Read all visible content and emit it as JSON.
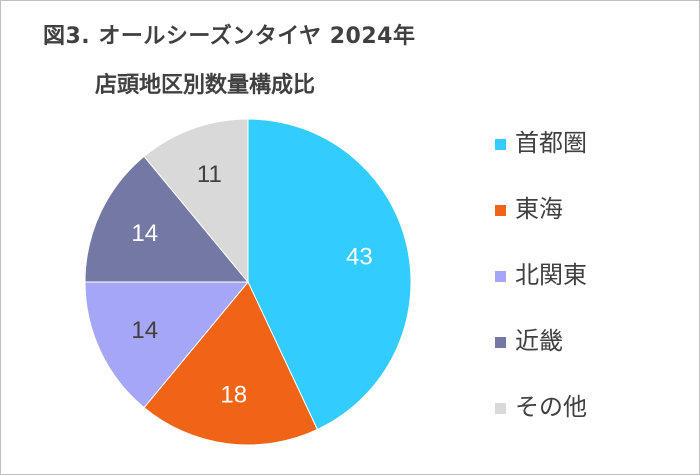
{
  "title": "図3. オールシーズンタイヤ 2024年",
  "subtitle": "店頭地区別数量構成比",
  "chart_data": {
    "type": "pie",
    "title": "図3. オールシーズンタイヤ 2024年",
    "subtitle": "店頭地区別数量構成比",
    "categories": [
      "首都圏",
      "東海",
      "北関東",
      "近畿",
      "その他"
    ],
    "values": [
      43,
      18,
      14,
      14,
      11
    ],
    "labels": [
      "43",
      "18",
      "14",
      "14",
      "11"
    ],
    "colors": [
      "#33ccff",
      "#f06418",
      "#a6a6f6",
      "#7478a4",
      "#d9d9d9"
    ],
    "label_colors": [
      "#ffffff",
      "#ffffff",
      "#404040",
      "#ffffff",
      "#404040"
    ],
    "start_angle_deg": 0,
    "direction": "clockwise",
    "legend_position": "right"
  }
}
